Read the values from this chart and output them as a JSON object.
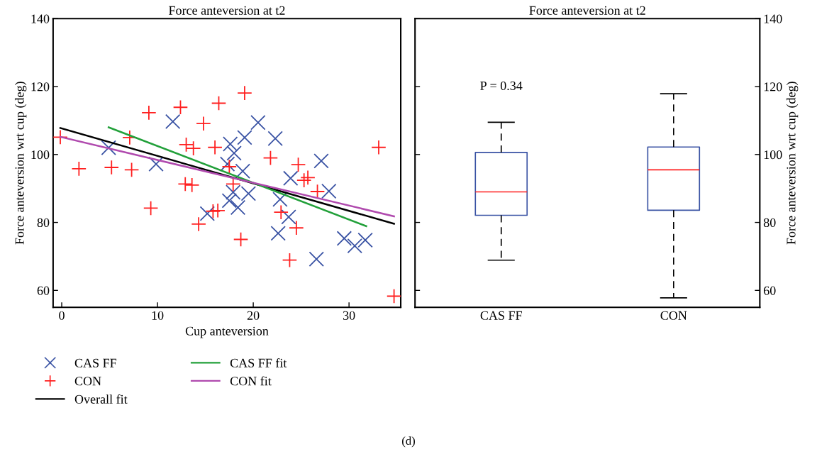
{
  "chart_data": [
    {
      "type": "scatter",
      "title": "Force anteversion at t2",
      "xlabel": "Cup anteversion",
      "ylabel": "Force anteversion wrt cup (deg)",
      "xlim": [
        -0.9,
        35.4
      ],
      "xticks": [
        0,
        10,
        20,
        30
      ],
      "ylim": [
        55,
        140
      ],
      "yticks": [
        60,
        80,
        100,
        120,
        140
      ],
      "grid": false,
      "legend": "bottom",
      "series": [
        {
          "name": "CAS FF",
          "type": "scatter",
          "marker": "cross",
          "color": "#3a53a4",
          "x": [
            4.9,
            11.6,
            9.85,
            15.2,
            20.5,
            19.1,
            17.6,
            22.3,
            18.0,
            17.3,
            18.9,
            17.9,
            19.5,
            17.5,
            18.4,
            27.1,
            23.9,
            27.9,
            22.8,
            23.7,
            22.6,
            26.6,
            29.5,
            30.6,
            31.7
          ],
          "values": [
            102.0,
            109.7,
            97.2,
            82.6,
            109.4,
            105.0,
            103.1,
            104.7,
            100.4,
            97.2,
            95.1,
            88.9,
            88.5,
            86.4,
            84.4,
            98.1,
            93.0,
            89.2,
            86.8,
            81.6,
            76.8,
            69.2,
            75.3,
            73.1,
            74.8
          ]
        },
        {
          "name": "CON",
          "type": "scatter",
          "marker": "plus",
          "color": "#ff2020",
          "x": [
            -0.15,
            1.8,
            5.2,
            7.3,
            9.1,
            9.3,
            7.1,
            12.4,
            14.8,
            16.4,
            13.0,
            13.75,
            16.0,
            12.9,
            13.6,
            15.8,
            16.3,
            14.3,
            19.1,
            17.5,
            17.9,
            18.7,
            21.8,
            24.7,
            25.3,
            25.7,
            26.7,
            22.9,
            24.5,
            23.8,
            33.1,
            34.7
          ],
          "values": [
            105.1,
            95.8,
            96.2,
            95.5,
            112.3,
            84.2,
            105.0,
            113.9,
            109.1,
            115.1,
            102.9,
            101.8,
            102.1,
            91.3,
            91.0,
            83.3,
            83.5,
            79.5,
            118.1,
            96.4,
            91.3,
            75.0,
            99.0,
            97.0,
            92.4,
            93.2,
            89.1,
            83.0,
            78.4,
            68.9,
            102.1,
            58.3
          ]
        },
        {
          "name": "Overall fit",
          "type": "line",
          "marker": "none",
          "color": "#000000",
          "x": [
            -0.15,
            34.7
          ],
          "values": [
            107.8,
            79.6
          ]
        },
        {
          "name": "CAS FF fit",
          "type": "line",
          "marker": "none",
          "color": "#22a03a",
          "x": [
            4.9,
            31.8
          ],
          "values": [
            108.0,
            78.9
          ]
        },
        {
          "name": "CON fit",
          "type": "line",
          "marker": "none",
          "color": "#b04aae",
          "x": [
            -0.15,
            34.7
          ],
          "values": [
            105.2,
            81.8
          ]
        }
      ],
      "annotations": [
        "(d)"
      ]
    },
    {
      "type": "box",
      "title": "Force anteversion at t2",
      "ylabel": "Force anteversion wrt cup (deg)",
      "categories": [
        "CAS FF",
        "CON"
      ],
      "ylim": [
        55,
        140
      ],
      "yticks": [
        60,
        80,
        100,
        120,
        140
      ],
      "grid": false,
      "boxes": [
        {
          "low": 68.9,
          "q1": 82.1,
          "median": 89.0,
          "q3": 100.6,
          "high": 109.5
        },
        {
          "low": 57.8,
          "q1": 83.6,
          "median": 95.5,
          "q3": 102.2,
          "high": 117.9
        }
      ],
      "annotations": [
        "P = 0.34"
      ]
    }
  ]
}
